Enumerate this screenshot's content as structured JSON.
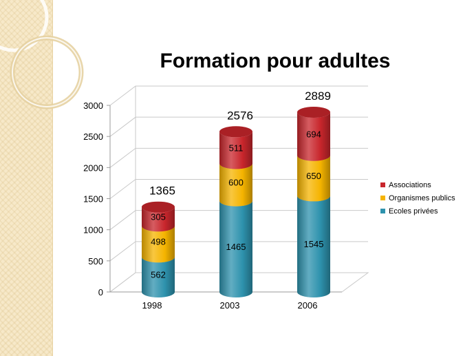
{
  "slide": {
    "title": "Formation pour adultes"
  },
  "colors": {
    "Associations": "#c8262c",
    "Organismes publics": "#f5b400",
    "Ecoles privées": "#2e92ad",
    "background_band": "#f7e9c9"
  },
  "chart_data": {
    "type": "bar",
    "stacked": true,
    "style": "3d-cylinder",
    "title": "Formation pour adultes",
    "categories": [
      "1998",
      "2003",
      "2006"
    ],
    "series": [
      {
        "name": "Ecoles privées",
        "values": [
          562,
          1465,
          1545
        ]
      },
      {
        "name": "Organismes publics",
        "values": [
          498,
          600,
          650
        ]
      },
      {
        "name": "Associations",
        "values": [
          305,
          511,
          694
        ]
      }
    ],
    "totals": [
      "1365",
      "2576",
      "2889"
    ],
    "ylim": [
      0,
      3000
    ],
    "yticks": [
      "0",
      "500",
      "1000",
      "1500",
      "2000",
      "2500",
      "3000"
    ],
    "grid": true,
    "legend_position": "right",
    "legend_order": [
      "Associations",
      "Organismes publics",
      "Ecoles privées"
    ]
  }
}
